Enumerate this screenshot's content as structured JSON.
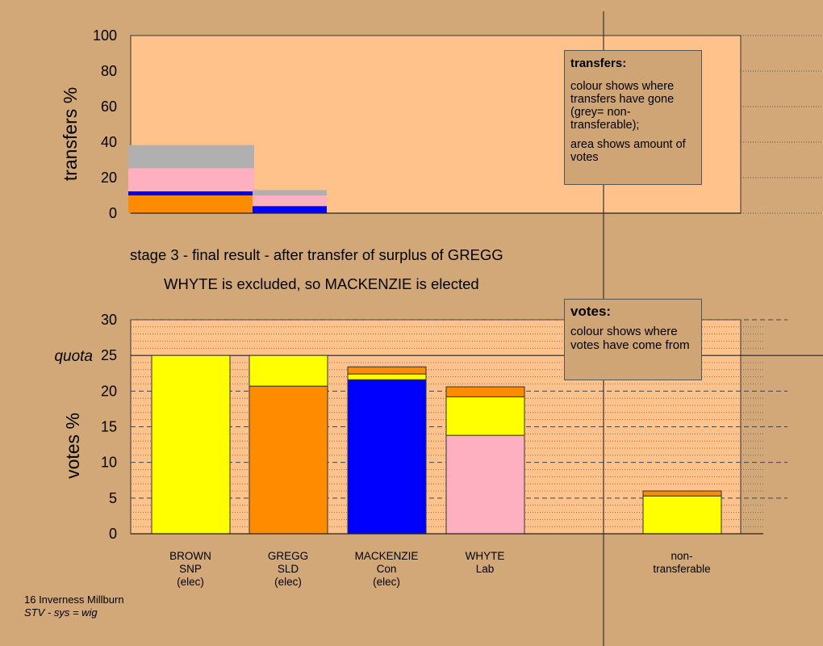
{
  "chart_data": [
    {
      "type": "bar",
      "ylabel": "transfers %",
      "ylim": [
        0,
        100
      ],
      "yticks": [
        "0",
        "20",
        "40",
        "60",
        "80",
        "100"
      ],
      "bars": [
        {
          "from": "GREGG",
          "to": "BROWN",
          "segments": [
            {
              "party": "SLD",
              "color": "#ff8c00",
              "value": 10
            },
            {
              "party": "Con",
              "color": "#0000ff",
              "value": 2.3
            },
            {
              "party": "Lab",
              "color": "#ffb0c0",
              "value": 13
            },
            {
              "party": "non-transferable",
              "color": "#b0b0b0",
              "value": 13
            }
          ]
        },
        {
          "from": "GREGG",
          "to": "GREGG",
          "segments": [
            {
              "party": "Con",
              "color": "#0000ff",
              "value": 4
            },
            {
              "party": "Lab",
              "color": "#ffb0c0",
              "value": 6
            },
            {
              "party": "non-transferable",
              "color": "#b0b0b0",
              "value": 3
            }
          ]
        }
      ]
    },
    {
      "type": "bar",
      "stacked": true,
      "ylabel": "votes %",
      "ylim": [
        0,
        30
      ],
      "yticks": [
        "0",
        "5",
        "10",
        "15",
        "20",
        "25",
        "30"
      ],
      "quota": {
        "label": "quota",
        "value": 25
      },
      "categories": [
        "BROWN SNP (elec)",
        "GREGG SLD (elec)",
        "MACKENZIE Con (elec)",
        "WHYTE Lab",
        "non-transferable"
      ],
      "stacks": [
        {
          "candidate": "BROWN",
          "segments": [
            {
              "source": "SNP",
              "color": "#ffff00",
              "value": 25
            }
          ]
        },
        {
          "candidate": "GREGG",
          "segments": [
            {
              "source": "SLD",
              "color": "#ff8c00",
              "value": 20.7
            },
            {
              "source": "SNP",
              "color": "#ffff00",
              "value": 4.3
            }
          ]
        },
        {
          "candidate": "MACKENZIE",
          "segments": [
            {
              "source": "Con",
              "color": "#0000ff",
              "value": 21.6
            },
            {
              "source": "SNP",
              "color": "#ffff00",
              "value": 0.8
            },
            {
              "source": "SLD",
              "color": "#ff8c00",
              "value": 1.0
            }
          ]
        },
        {
          "candidate": "WHYTE",
          "segments": [
            {
              "source": "Lab",
              "color": "#ffb0c0",
              "value": 13.8
            },
            {
              "source": "SNP",
              "color": "#ffff00",
              "value": 5.4
            },
            {
              "source": "SLD",
              "color": "#ff8c00",
              "value": 1.4
            }
          ]
        },
        {
          "candidate": "non-transferable",
          "segments": [
            {
              "source": "SNP",
              "color": "#ffff00",
              "value": 5.3
            },
            {
              "source": "SLD",
              "color": "#ff8c00",
              "value": 0.7
            }
          ]
        }
      ]
    }
  ],
  "xaxis": {
    "candidates": [
      {
        "lines": [
          "BROWN",
          "SNP",
          "(elec)"
        ]
      },
      {
        "lines": [
          "GREGG",
          "SLD",
          "(elec)"
        ]
      },
      {
        "lines": [
          "MACKENZIE",
          "Con",
          "(elec)"
        ]
      },
      {
        "lines": [
          "WHYTE",
          "Lab"
        ]
      },
      {
        "lines": [
          "non-",
          "transferable"
        ]
      }
    ]
  },
  "stage": {
    "title": "stage 3 - final result - after transfer of surplus of GREGG",
    "subtitle": "WHYTE is excluded, so MACKENZIE is elected"
  },
  "legend_transfers": {
    "heading": "transfers:",
    "body1": "colour shows where transfers have gone (grey= non-transferable);",
    "body2": "area shows amount of votes"
  },
  "legend_votes": {
    "heading": "votes:",
    "body": "colour shows where votes have come from"
  },
  "footer": {
    "line1": "16 Inverness Millburn",
    "line2": "STV - sys = wig"
  },
  "colors": {
    "background": "#d3a878",
    "plot_bg": "#ffc28a",
    "SNP": "#ffff00",
    "SLD": "#ff8c00",
    "Con": "#0000ff",
    "Lab": "#ffb0c0",
    "non-transferable": "#b0b0b0"
  }
}
